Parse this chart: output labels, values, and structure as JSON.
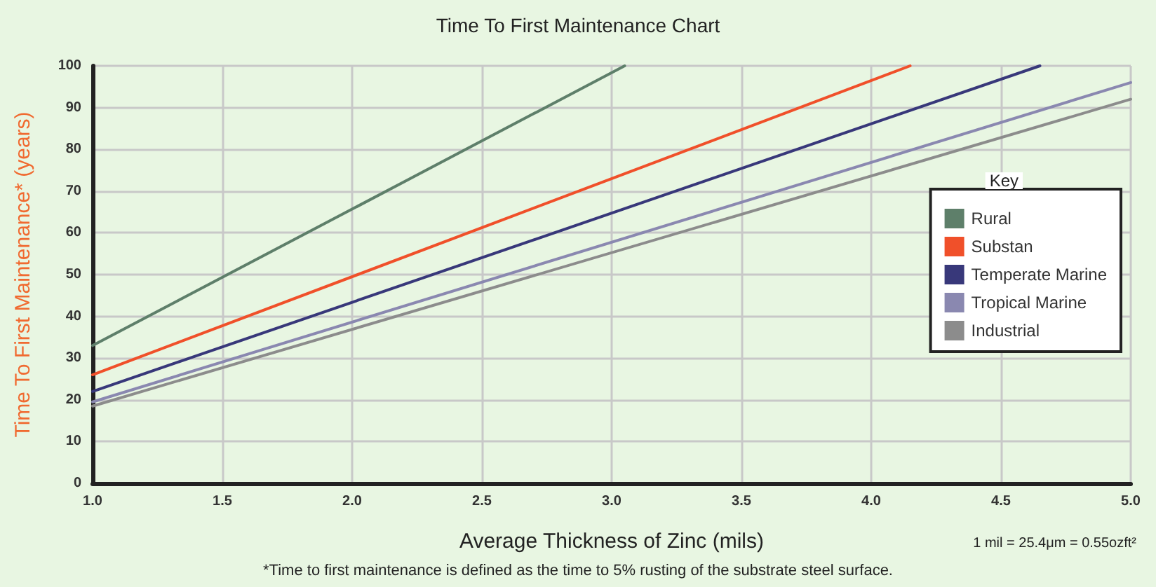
{
  "chart_data": {
    "type": "line",
    "title": "Time To First Maintenance Chart",
    "xlabel": "Average Thickness of Zinc (mils)",
    "ylabel": "Time To First Maintenance* (years)",
    "legend_title": "Key",
    "legend": "right",
    "annotations": [
      "1 mil = 25.4μm = 0.55ozft²",
      "*Time to first maintenance is defined as the time to 5% rusting of the substrate steel surface."
    ],
    "series": [
      {
        "name": "Rural",
        "color": "#5e7f6a",
        "x": [
          1.0,
          3.05
        ],
        "values": [
          33,
          100
        ]
      },
      {
        "name": "Substan",
        "color": "#f0502a",
        "x": [
          1.0,
          4.15
        ],
        "values": [
          26,
          100
        ]
      },
      {
        "name": "Temperate Marine",
        "color": "#38387a",
        "x": [
          1.0,
          4.65
        ],
        "values": [
          22,
          100
        ]
      },
      {
        "name": "Tropical Marine",
        "color": "#8a88b0",
        "x": [
          1.0,
          5.0
        ],
        "values": [
          19.5,
          96
        ]
      },
      {
        "name": "Industrial",
        "color": "#8c8c8c",
        "x": [
          1.0,
          5.0
        ],
        "values": [
          18.5,
          92
        ]
      }
    ],
    "xlim": [
      1.0,
      5.0
    ],
    "xticks": [
      {
        "value": 1,
        "label": "1.0"
      },
      {
        "value": 1.5,
        "label": "1.5"
      },
      {
        "value": 2,
        "label": "2.0"
      },
      {
        "value": 2.5,
        "label": "2.5"
      },
      {
        "value": 3,
        "label": "3.0"
      },
      {
        "value": 3.5,
        "label": "3.5"
      },
      {
        "value": 4,
        "label": "4.0"
      },
      {
        "value": 4.5,
        "label": "4.5"
      },
      {
        "value": 5,
        "label": "5.0"
      }
    ],
    "ylim": [
      0,
      100
    ],
    "yticks": [
      0,
      10,
      20,
      30,
      40,
      50,
      60,
      70,
      80,
      90,
      100
    ],
    "grid": true,
    "line_style": "solid",
    "marker": "none"
  }
}
